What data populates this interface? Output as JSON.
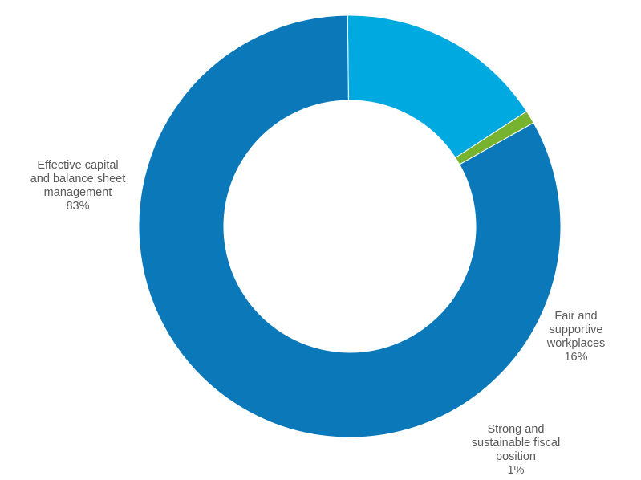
{
  "chart_data": {
    "type": "pie",
    "variant": "donut",
    "title": "",
    "slices": [
      {
        "name": "Fair and supportive workplaces",
        "label_lines": [
          "Fair and",
          "supportive",
          "workplaces",
          "16%"
        ],
        "value": 16,
        "color": "#00A9E0"
      },
      {
        "name": "Strong and sustainable fiscal position",
        "label_lines": [
          "Strong and",
          "sustainable fiscal",
          "position",
          "1%"
        ],
        "value": 1,
        "color": "#77B32F"
      },
      {
        "name": "Effective capital and balance sheet management",
        "label_lines": [
          "Effective capital",
          "and balance sheet",
          "management",
          "83%"
        ],
        "value": 83,
        "color": "#0B79B9"
      }
    ],
    "start_angle_deg": 90.6,
    "direction": "clockwise",
    "legend": "none"
  }
}
